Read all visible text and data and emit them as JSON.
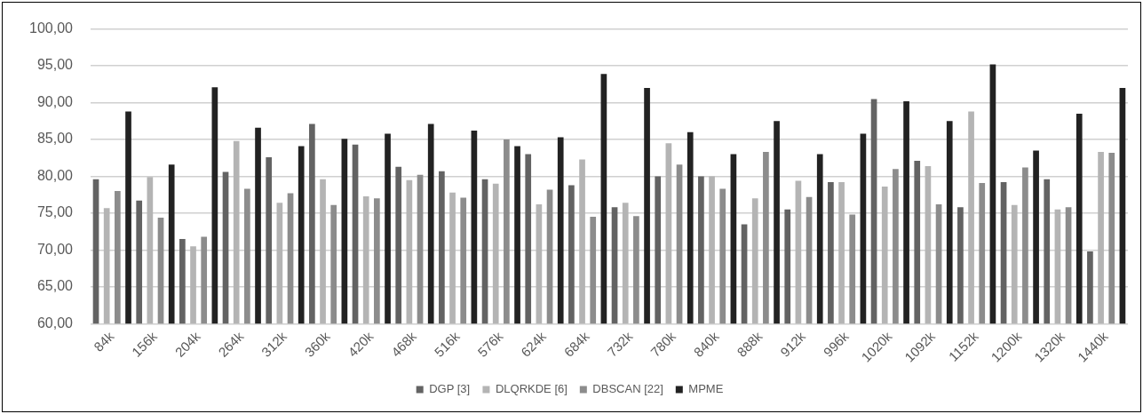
{
  "chart_data": {
    "type": "bar",
    "categories": [
      "84k",
      "156k",
      "204k",
      "264k",
      "312k",
      "360k",
      "420k",
      "468k",
      "516k",
      "576k",
      "624k",
      "684k",
      "732k",
      "780k",
      "840k",
      "888k",
      "912k",
      "996k",
      "1020k",
      "1092k",
      "1152k",
      "1200k",
      "1320k",
      "1440k"
    ],
    "series": [
      {
        "name": "DGP [3]",
        "color": "#636363",
        "values": [
          79.6,
          76.7,
          71.5,
          80.6,
          82.6,
          87.1,
          84.3,
          81.3,
          80.7,
          79.6,
          83.0,
          78.8,
          75.8,
          80.0,
          80.0,
          73.5,
          75.5,
          79.2,
          90.5,
          82.1,
          75.8,
          79.2,
          79.6,
          69.8
        ]
      },
      {
        "name": "DLQRKDE [6]",
        "color": "#b4b4b4",
        "values": [
          75.7,
          79.9,
          70.5,
          84.8,
          76.4,
          79.6,
          77.3,
          79.5,
          77.8,
          79.0,
          76.2,
          82.3,
          76.4,
          84.5,
          80.0,
          77.0,
          79.4,
          79.2,
          78.6,
          81.4,
          88.8,
          76.1,
          75.5,
          83.3
        ]
      },
      {
        "name": "DBSCAN [22]",
        "color": "#8c8c8c",
        "values": [
          78.0,
          74.4,
          71.8,
          78.3,
          77.7,
          76.1,
          77.0,
          80.2,
          77.1,
          85.0,
          78.2,
          74.5,
          74.6,
          81.6,
          78.3,
          83.3,
          77.2,
          74.8,
          81.0,
          76.2,
          79.1,
          81.2,
          75.8,
          83.2
        ]
      },
      {
        "name": "MPME",
        "color": "#222222",
        "values": [
          88.8,
          81.6,
          92.1,
          86.6,
          84.1,
          85.1,
          85.8,
          87.1,
          86.2,
          84.1,
          85.3,
          93.9,
          92.0,
          86.0,
          83.0,
          87.5,
          83.0,
          85.8,
          90.2,
          87.5,
          95.2,
          83.5,
          88.5,
          92.0
        ]
      }
    ],
    "ylim": [
      60,
      100
    ],
    "yticks": [
      {
        "value": 60,
        "label": "60,00"
      },
      {
        "value": 65,
        "label": "65,00"
      },
      {
        "value": 70,
        "label": "70,00"
      },
      {
        "value": 75,
        "label": "75,00"
      },
      {
        "value": 80,
        "label": "80,00"
      },
      {
        "value": 85,
        "label": "85,00"
      },
      {
        "value": 90,
        "label": "90,00"
      },
      {
        "value": 95,
        "label": "95,00"
      },
      {
        "value": 100,
        "label": "100,00"
      }
    ],
    "grid": "y",
    "legend": "bottom"
  }
}
